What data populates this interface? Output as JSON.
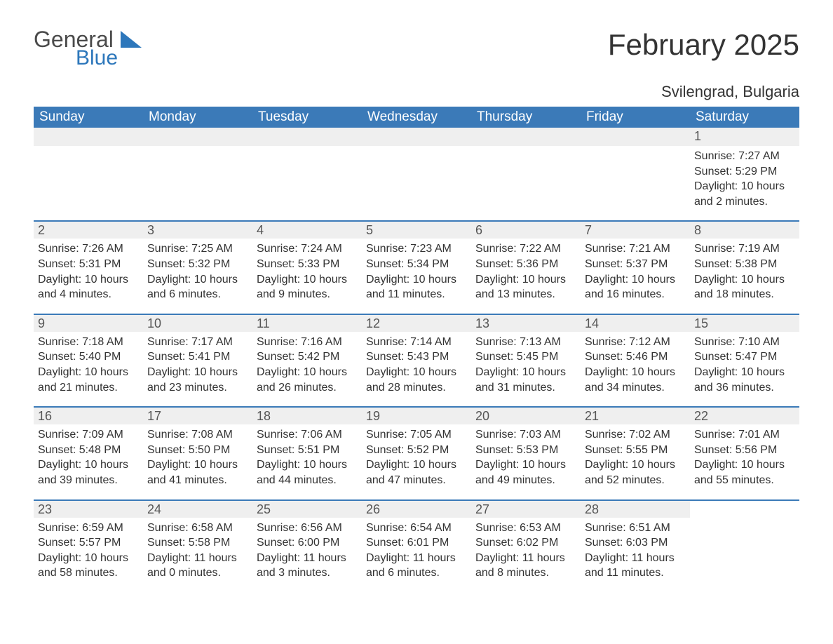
{
  "logo": {
    "word1": "General",
    "word2": "Blue"
  },
  "title": "February 2025",
  "subtitle": "Svilengrad, Bulgaria",
  "colors": {
    "header_bg": "#3b7ab8",
    "header_text": "#ffffff",
    "strip_bg": "#efefef",
    "strip_border": "#3b7ab8",
    "body_text": "#333333",
    "logo_gray": "#4a4a4a",
    "logo_blue": "#2d77bb",
    "page_bg": "#ffffff"
  },
  "fonts": {
    "title_size_pt": 32,
    "subtitle_size_pt": 17,
    "header_size_pt": 14,
    "daynum_size_pt": 14,
    "body_size_pt": 12
  },
  "layout": {
    "columns": 7,
    "rows": 5
  },
  "daynames": [
    "Sunday",
    "Monday",
    "Tuesday",
    "Wednesday",
    "Thursday",
    "Friday",
    "Saturday"
  ],
  "weeks": [
    [
      {
        "day": "",
        "sunrise": "",
        "sunset": "",
        "daylight": ""
      },
      {
        "day": "",
        "sunrise": "",
        "sunset": "",
        "daylight": ""
      },
      {
        "day": "",
        "sunrise": "",
        "sunset": "",
        "daylight": ""
      },
      {
        "day": "",
        "sunrise": "",
        "sunset": "",
        "daylight": ""
      },
      {
        "day": "",
        "sunrise": "",
        "sunset": "",
        "daylight": ""
      },
      {
        "day": "",
        "sunrise": "",
        "sunset": "",
        "daylight": ""
      },
      {
        "day": "1",
        "sunrise": "Sunrise: 7:27 AM",
        "sunset": "Sunset: 5:29 PM",
        "daylight": "Daylight: 10 hours and 2 minutes."
      }
    ],
    [
      {
        "day": "2",
        "sunrise": "Sunrise: 7:26 AM",
        "sunset": "Sunset: 5:31 PM",
        "daylight": "Daylight: 10 hours and 4 minutes."
      },
      {
        "day": "3",
        "sunrise": "Sunrise: 7:25 AM",
        "sunset": "Sunset: 5:32 PM",
        "daylight": "Daylight: 10 hours and 6 minutes."
      },
      {
        "day": "4",
        "sunrise": "Sunrise: 7:24 AM",
        "sunset": "Sunset: 5:33 PM",
        "daylight": "Daylight: 10 hours and 9 minutes."
      },
      {
        "day": "5",
        "sunrise": "Sunrise: 7:23 AM",
        "sunset": "Sunset: 5:34 PM",
        "daylight": "Daylight: 10 hours and 11 minutes."
      },
      {
        "day": "6",
        "sunrise": "Sunrise: 7:22 AM",
        "sunset": "Sunset: 5:36 PM",
        "daylight": "Daylight: 10 hours and 13 minutes."
      },
      {
        "day": "7",
        "sunrise": "Sunrise: 7:21 AM",
        "sunset": "Sunset: 5:37 PM",
        "daylight": "Daylight: 10 hours and 16 minutes."
      },
      {
        "day": "8",
        "sunrise": "Sunrise: 7:19 AM",
        "sunset": "Sunset: 5:38 PM",
        "daylight": "Daylight: 10 hours and 18 minutes."
      }
    ],
    [
      {
        "day": "9",
        "sunrise": "Sunrise: 7:18 AM",
        "sunset": "Sunset: 5:40 PM",
        "daylight": "Daylight: 10 hours and 21 minutes."
      },
      {
        "day": "10",
        "sunrise": "Sunrise: 7:17 AM",
        "sunset": "Sunset: 5:41 PM",
        "daylight": "Daylight: 10 hours and 23 minutes."
      },
      {
        "day": "11",
        "sunrise": "Sunrise: 7:16 AM",
        "sunset": "Sunset: 5:42 PM",
        "daylight": "Daylight: 10 hours and 26 minutes."
      },
      {
        "day": "12",
        "sunrise": "Sunrise: 7:14 AM",
        "sunset": "Sunset: 5:43 PM",
        "daylight": "Daylight: 10 hours and 28 minutes."
      },
      {
        "day": "13",
        "sunrise": "Sunrise: 7:13 AM",
        "sunset": "Sunset: 5:45 PM",
        "daylight": "Daylight: 10 hours and 31 minutes."
      },
      {
        "day": "14",
        "sunrise": "Sunrise: 7:12 AM",
        "sunset": "Sunset: 5:46 PM",
        "daylight": "Daylight: 10 hours and 34 minutes."
      },
      {
        "day": "15",
        "sunrise": "Sunrise: 7:10 AM",
        "sunset": "Sunset: 5:47 PM",
        "daylight": "Daylight: 10 hours and 36 minutes."
      }
    ],
    [
      {
        "day": "16",
        "sunrise": "Sunrise: 7:09 AM",
        "sunset": "Sunset: 5:48 PM",
        "daylight": "Daylight: 10 hours and 39 minutes."
      },
      {
        "day": "17",
        "sunrise": "Sunrise: 7:08 AM",
        "sunset": "Sunset: 5:50 PM",
        "daylight": "Daylight: 10 hours and 41 minutes."
      },
      {
        "day": "18",
        "sunrise": "Sunrise: 7:06 AM",
        "sunset": "Sunset: 5:51 PM",
        "daylight": "Daylight: 10 hours and 44 minutes."
      },
      {
        "day": "19",
        "sunrise": "Sunrise: 7:05 AM",
        "sunset": "Sunset: 5:52 PM",
        "daylight": "Daylight: 10 hours and 47 minutes."
      },
      {
        "day": "20",
        "sunrise": "Sunrise: 7:03 AM",
        "sunset": "Sunset: 5:53 PM",
        "daylight": "Daylight: 10 hours and 49 minutes."
      },
      {
        "day": "21",
        "sunrise": "Sunrise: 7:02 AM",
        "sunset": "Sunset: 5:55 PM",
        "daylight": "Daylight: 10 hours and 52 minutes."
      },
      {
        "day": "22",
        "sunrise": "Sunrise: 7:01 AM",
        "sunset": "Sunset: 5:56 PM",
        "daylight": "Daylight: 10 hours and 55 minutes."
      }
    ],
    [
      {
        "day": "23",
        "sunrise": "Sunrise: 6:59 AM",
        "sunset": "Sunset: 5:57 PM",
        "daylight": "Daylight: 10 hours and 58 minutes."
      },
      {
        "day": "24",
        "sunrise": "Sunrise: 6:58 AM",
        "sunset": "Sunset: 5:58 PM",
        "daylight": "Daylight: 11 hours and 0 minutes."
      },
      {
        "day": "25",
        "sunrise": "Sunrise: 6:56 AM",
        "sunset": "Sunset: 6:00 PM",
        "daylight": "Daylight: 11 hours and 3 minutes."
      },
      {
        "day": "26",
        "sunrise": "Sunrise: 6:54 AM",
        "sunset": "Sunset: 6:01 PM",
        "daylight": "Daylight: 11 hours and 6 minutes."
      },
      {
        "day": "27",
        "sunrise": "Sunrise: 6:53 AM",
        "sunset": "Sunset: 6:02 PM",
        "daylight": "Daylight: 11 hours and 8 minutes."
      },
      {
        "day": "28",
        "sunrise": "Sunrise: 6:51 AM",
        "sunset": "Sunset: 6:03 PM",
        "daylight": "Daylight: 11 hours and 11 minutes."
      },
      {
        "day": "",
        "sunrise": "",
        "sunset": "",
        "daylight": ""
      }
    ]
  ]
}
